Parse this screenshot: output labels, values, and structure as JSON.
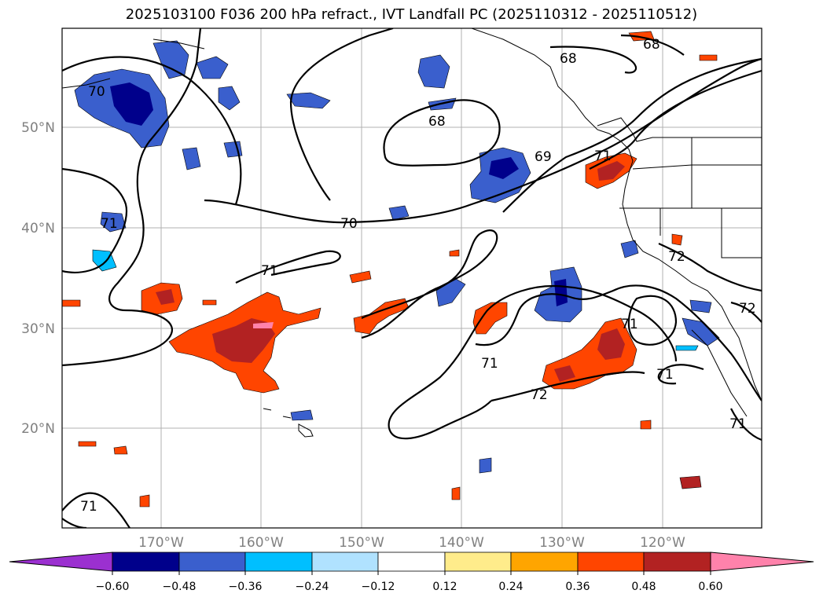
{
  "title": "2025103100 F036 200 hPa refract., IVT Landfall PC (2025110312 - 2025110512)",
  "map": {
    "lat_labels": [
      "50°N",
      "40°N",
      "30°N",
      "20°N"
    ],
    "lon_labels": [
      "170°W",
      "160°W",
      "150°W",
      "140°W",
      "130°W",
      "120°W"
    ],
    "contour_levels": [
      "68",
      "69",
      "70",
      "71",
      "72"
    ]
  },
  "colorbar": {
    "ticks": [
      "−0.60",
      "−0.48",
      "−0.36",
      "−0.24",
      "−0.12",
      "0.12",
      "0.24",
      "0.36",
      "0.48",
      "0.60"
    ],
    "colors": [
      "#9b30d0",
      "#00008b",
      "#3a5fcd",
      "#00bfff",
      "#b0e2ff",
      "#ffffff",
      "#ffec8b",
      "#ffa500",
      "#ff4500",
      "#b22222",
      "#ff82ab"
    ]
  }
}
